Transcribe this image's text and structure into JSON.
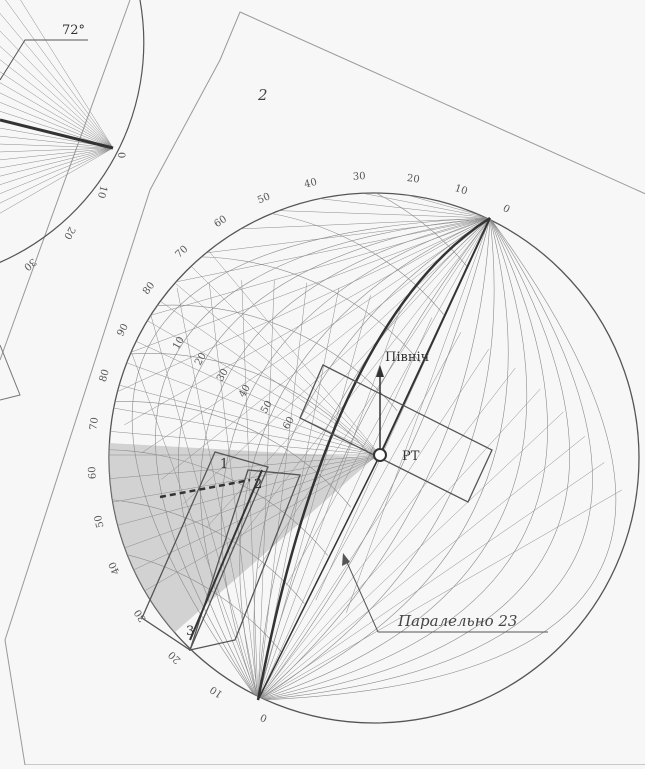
{
  "labels": {
    "angle_label": "72°",
    "plane_number": "2",
    "north_label": "Північ",
    "rt_label": "РТ",
    "parallel_label": "Паралельно 23",
    "marker_1": "1",
    "marker_2": "2",
    "marker_3": "3"
  },
  "scale": {
    "main_ticks": [
      "0",
      "10",
      "20",
      "30",
      "40",
      "50",
      "60",
      "70",
      "80",
      "90",
      "80",
      "70",
      "60",
      "50",
      "40",
      "30",
      "20",
      "10",
      "0"
    ],
    "inner_ticks": [
      "10",
      "20",
      "30",
      "40",
      "50",
      "60"
    ],
    "top_left_ticks": [
      "0",
      "10",
      "20",
      "30"
    ]
  },
  "colors": {
    "line": "#555555",
    "grid": "#8a8a8a",
    "shade": "#b4b4b4",
    "background": "#f7f7f7"
  }
}
